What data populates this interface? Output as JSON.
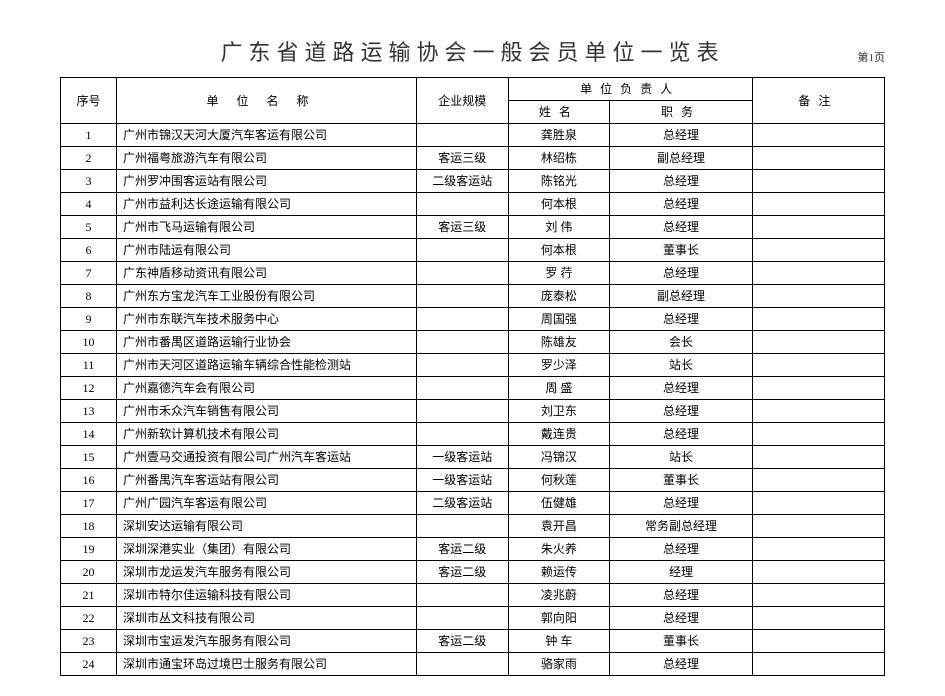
{
  "title": "广东省道路运输协会一般会员单位一览表",
  "page_label": "第1页",
  "headers": {
    "seq": "序号",
    "unit": "单位名称",
    "scale": "企业规模",
    "person_group": "单位负责人",
    "name": "姓名",
    "position": "职务",
    "note": "备注"
  },
  "rows": [
    {
      "seq": "1",
      "unit": "广州市锦汉天河大厦汽车客运有限公司",
      "scale": "",
      "name": "龚胜泉",
      "pos": "总经理",
      "note": ""
    },
    {
      "seq": "2",
      "unit": "广州福粤旅游汽车有限公司",
      "scale": "客运三级",
      "name": "林绍栋",
      "pos": "副总经理",
      "note": ""
    },
    {
      "seq": "3",
      "unit": "广州罗冲围客运站有限公司",
      "scale": "二级客运站",
      "name": "陈铭光",
      "pos": "总经理",
      "note": ""
    },
    {
      "seq": "4",
      "unit": "广州市益利达长途运输有限公司",
      "scale": "",
      "name": "何本根",
      "pos": "总经理",
      "note": ""
    },
    {
      "seq": "5",
      "unit": "广州市飞马运输有限公司",
      "scale": "客运三级",
      "name": "刘 伟",
      "pos": "总经理",
      "note": ""
    },
    {
      "seq": "6",
      "unit": "广州市陆运有限公司",
      "scale": "",
      "name": "何本根",
      "pos": "董事长",
      "note": ""
    },
    {
      "seq": "7",
      "unit": "广东神盾移动资讯有限公司",
      "scale": "",
      "name": "罗 荇",
      "pos": "总经理",
      "note": ""
    },
    {
      "seq": "8",
      "unit": "广州东方宝龙汽车工业股份有限公司",
      "scale": "",
      "name": "庞泰松",
      "pos": "副总经理",
      "note": ""
    },
    {
      "seq": "9",
      "unit": "广州市东联汽车技术服务中心",
      "scale": "",
      "name": "周国强",
      "pos": "总经理",
      "note": ""
    },
    {
      "seq": "10",
      "unit": "广州市番禺区道路运输行业协会",
      "scale": "",
      "name": "陈雄友",
      "pos": "会长",
      "note": ""
    },
    {
      "seq": "11",
      "unit": "广州市天河区道路运输车辆综合性能检测站",
      "scale": "",
      "name": "罗少泽",
      "pos": "站长",
      "note": ""
    },
    {
      "seq": "12",
      "unit": "广州嘉德汽车会有限公司",
      "scale": "",
      "name": "周 盛",
      "pos": "总经理",
      "note": ""
    },
    {
      "seq": "13",
      "unit": "广州市禾众汽车销售有限公司",
      "scale": "",
      "name": "刘卫东",
      "pos": "总经理",
      "note": ""
    },
    {
      "seq": "14",
      "unit": "广州新软计算机技术有限公司",
      "scale": "",
      "name": "戴连贵",
      "pos": "总经理",
      "note": ""
    },
    {
      "seq": "15",
      "unit": "广州壹马交通投资有限公司广州汽车客运站",
      "scale": "一级客运站",
      "name": "冯锦汉",
      "pos": "站长",
      "note": ""
    },
    {
      "seq": "16",
      "unit": "广州番禺汽车客运站有限公司",
      "scale": "一级客运站",
      "name": "何秋莲",
      "pos": "董事长",
      "note": ""
    },
    {
      "seq": "17",
      "unit": "广州广园汽车客运有限公司",
      "scale": "二级客运站",
      "name": "伍健雄",
      "pos": "总经理",
      "note": ""
    },
    {
      "seq": "18",
      "unit": "深圳安达运输有限公司",
      "scale": "",
      "name": "袁开昌",
      "pos": "常务副总经理",
      "note": ""
    },
    {
      "seq": "19",
      "unit": "深圳深港实业（集团）有限公司",
      "scale": "客运二级",
      "name": "朱火养",
      "pos": "总经理",
      "note": ""
    },
    {
      "seq": "20",
      "unit": "深圳市龙运发汽车服务有限公司",
      "scale": "客运二级",
      "name": "赖运传",
      "pos": "经理",
      "note": ""
    },
    {
      "seq": "21",
      "unit": "深圳市特尔佳运输科技有限公司",
      "scale": "",
      "name": "凌兆蔚",
      "pos": "总经理",
      "note": ""
    },
    {
      "seq": "22",
      "unit": "深圳市丛文科技有限公司",
      "scale": "",
      "name": "郭向阳",
      "pos": "总经理",
      "note": ""
    },
    {
      "seq": "23",
      "unit": "深圳市宝运发汽车服务有限公司",
      "scale": "客运二级",
      "name": "钟 车",
      "pos": "董事长",
      "note": ""
    },
    {
      "seq": "24",
      "unit": "深圳市通宝环岛过境巴士服务有限公司",
      "scale": "",
      "name": "骆家雨",
      "pos": "总经理",
      "note": ""
    }
  ]
}
